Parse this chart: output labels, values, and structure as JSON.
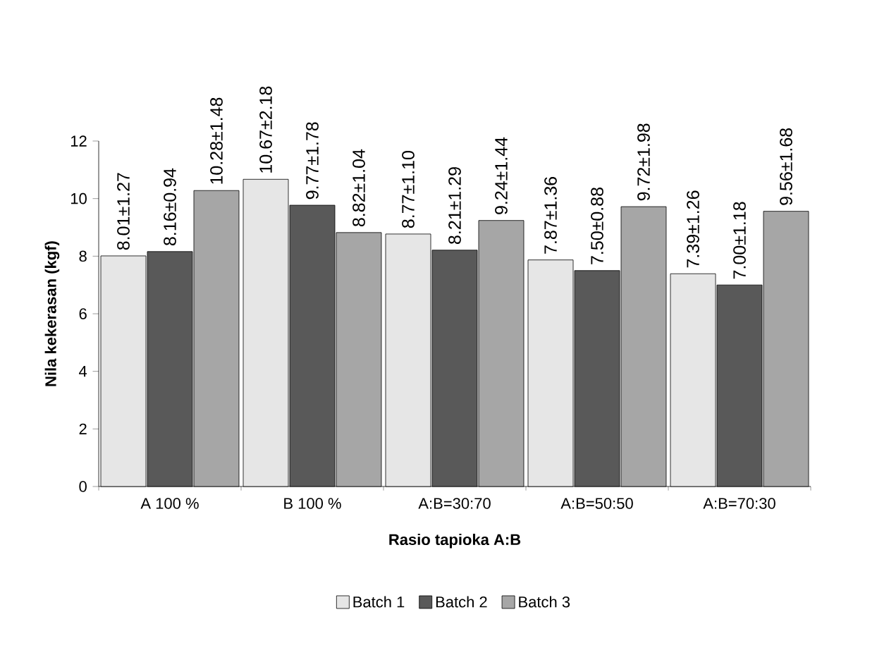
{
  "chart_data": {
    "type": "bar",
    "xlabel": "Rasio tapioka A:B",
    "ylabel": "Nila kekerasan (kgf)",
    "categories": [
      "A 100 %",
      "B 100 %",
      "A:B=30:70",
      "A:B=50:50",
      "A:B=70:30"
    ],
    "series": [
      {
        "name": "Batch 1",
        "color": "#e6e6e6",
        "values": [
          8.01,
          10.67,
          8.77,
          7.87,
          7.39
        ],
        "value_labels": [
          "8.01±1.27",
          "10.67±2.18",
          "8.77±1.10",
          "7.87±1.36",
          "7.39±1.26"
        ]
      },
      {
        "name": "Batch 2",
        "color": "#595959",
        "values": [
          8.16,
          9.77,
          8.21,
          7.5,
          7.0
        ],
        "value_labels": [
          "8.16±0.94",
          "9.77±1.78",
          "8.21±1.29",
          "7.50±0.88",
          "7.00±1.18"
        ]
      },
      {
        "name": "Batch 3",
        "color": "#a6a6a6",
        "values": [
          10.28,
          8.82,
          9.24,
          9.72,
          9.56
        ],
        "value_labels": [
          "10.28±1.48",
          "8.82±1.04",
          "9.24±1.44",
          "9.72±1.98",
          "9.56±1.68"
        ]
      }
    ],
    "ylim": [
      0,
      12
    ],
    "yticks": [
      0,
      2,
      4,
      6,
      8,
      10,
      12
    ],
    "grid": false,
    "legend": "bottom"
  }
}
